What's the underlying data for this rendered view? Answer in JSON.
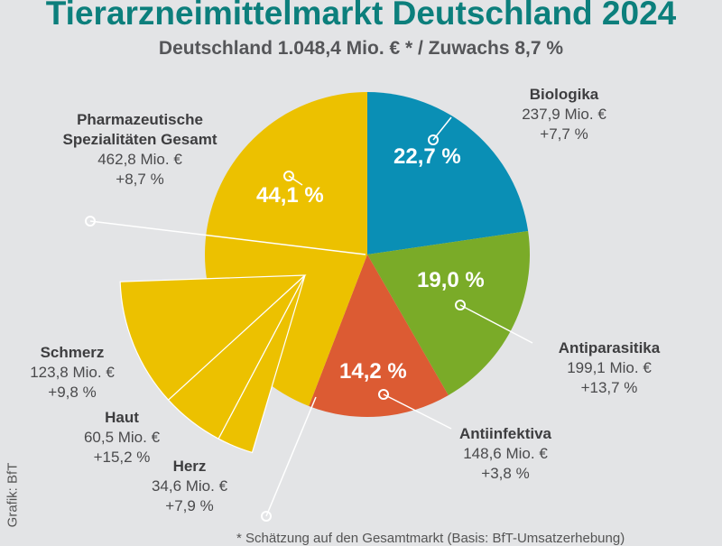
{
  "title": "Tierarzneimittelmarkt Deutschland 2024",
  "subtitle": "Deutschland 1.048,4 Mio. € * / Zuwachs 8,7 %",
  "footnote": "* Schätzung auf den Gesamtmarkt (Basis: BfT-Umsatzerhebung)",
  "credit": "Grafik: BfT",
  "chart_data": {
    "type": "pie",
    "unit": "Mio. €",
    "slices": [
      {
        "name": "Biologika",
        "value": 237.9,
        "value_label": "237,9 Mio. €",
        "growth": "+7,7 %",
        "share": "22,7 %",
        "color": "#0a8fb5"
      },
      {
        "name": "Antiparasitika",
        "value": 199.1,
        "value_label": "199,1 Mio. €",
        "growth": "+13,7 %",
        "share": "19,0 %",
        "color": "#7aab28"
      },
      {
        "name": "Antiinfektiva",
        "value": 148.6,
        "value_label": "148,6 Mio. €",
        "growth": "+3,8 %",
        "share": "14,2 %",
        "color": "#dc5b33"
      },
      {
        "name": "Pharmazeutische Spezialitäten Gesamt",
        "value": 462.8,
        "value_label": "462,8 Mio. €",
        "growth": "+8,7 %",
        "share": "44,1 %",
        "color": "#ecc100"
      }
    ],
    "breakdown": [
      {
        "name": "Schmerz",
        "value": 123.8,
        "value_label": "123,8 Mio. €",
        "growth": "+9,8 %"
      },
      {
        "name": "Haut",
        "value": 60.5,
        "value_label": "60,5 Mio. €",
        "growth": "+15,2 %"
      },
      {
        "name": "Herz",
        "value": 34.6,
        "value_label": "34,6 Mio. €",
        "growth": "+7,9 %"
      }
    ]
  }
}
